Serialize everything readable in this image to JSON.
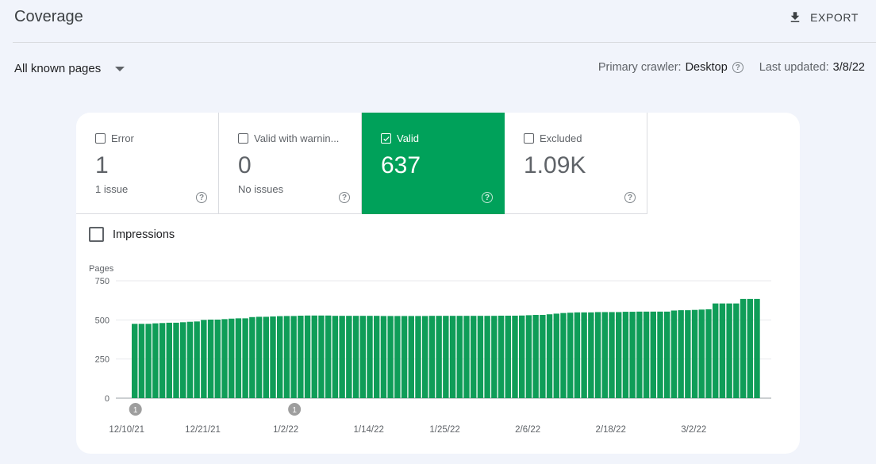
{
  "header": {
    "title": "Coverage",
    "export_label": "EXPORT"
  },
  "filter": {
    "selected": "All known pages"
  },
  "meta": {
    "crawler_label": "Primary crawler:",
    "crawler_value": "Desktop",
    "updated_label": "Last updated:",
    "updated_value": "3/8/22"
  },
  "tiles": [
    {
      "label": "Error",
      "value": "1",
      "sub": "1 issue",
      "checked": false
    },
    {
      "label": "Valid with warnin...",
      "value": "0",
      "sub": "No issues",
      "checked": false
    },
    {
      "label": "Valid",
      "value": "637",
      "sub": "",
      "checked": true
    },
    {
      "label": "Excluded",
      "value": "1.09K",
      "sub": "",
      "checked": false
    }
  ],
  "impressions_label": "Impressions",
  "colors": {
    "accent": "#00a15a",
    "bar": "#0f9d58"
  },
  "chart_data": {
    "type": "bar",
    "ylabel": "Pages",
    "ylim": [
      0,
      750
    ],
    "yticks": [
      0,
      250,
      500,
      750
    ],
    "xtick_labels": [
      "12/10/21",
      "12/21/21",
      "1/2/22",
      "1/14/22",
      "1/25/22",
      "2/6/22",
      "2/18/22",
      "3/2/22"
    ],
    "xtick_bar_index": [
      0,
      11,
      23,
      35,
      46,
      58,
      70,
      82
    ],
    "annotations": [
      {
        "bar_index": 0,
        "label": "1"
      },
      {
        "bar_index": 23,
        "label": "1"
      }
    ],
    "series": [
      {
        "values": [
          475,
          475,
          475,
          478,
          480,
          482,
          482,
          485,
          488,
          490,
          500,
          502,
          502,
          505,
          508,
          510,
          510,
          518,
          520,
          520,
          522,
          524,
          525,
          525,
          527,
          528,
          528,
          528,
          528,
          526,
          526,
          526,
          526,
          526,
          526,
          526,
          525,
          525,
          525,
          525,
          525,
          525,
          525,
          526,
          526,
          526,
          526,
          526,
          526,
          526,
          526,
          526,
          526,
          527,
          527,
          527,
          528,
          530,
          532,
          532,
          536,
          540,
          544,
          546,
          548,
          548,
          548,
          550,
          550,
          550,
          550,
          552,
          552,
          553,
          553,
          553,
          553,
          553,
          560,
          562,
          562,
          564,
          566,
          568,
          605,
          605,
          605,
          605,
          634,
          634,
          634
        ]
      }
    ]
  }
}
